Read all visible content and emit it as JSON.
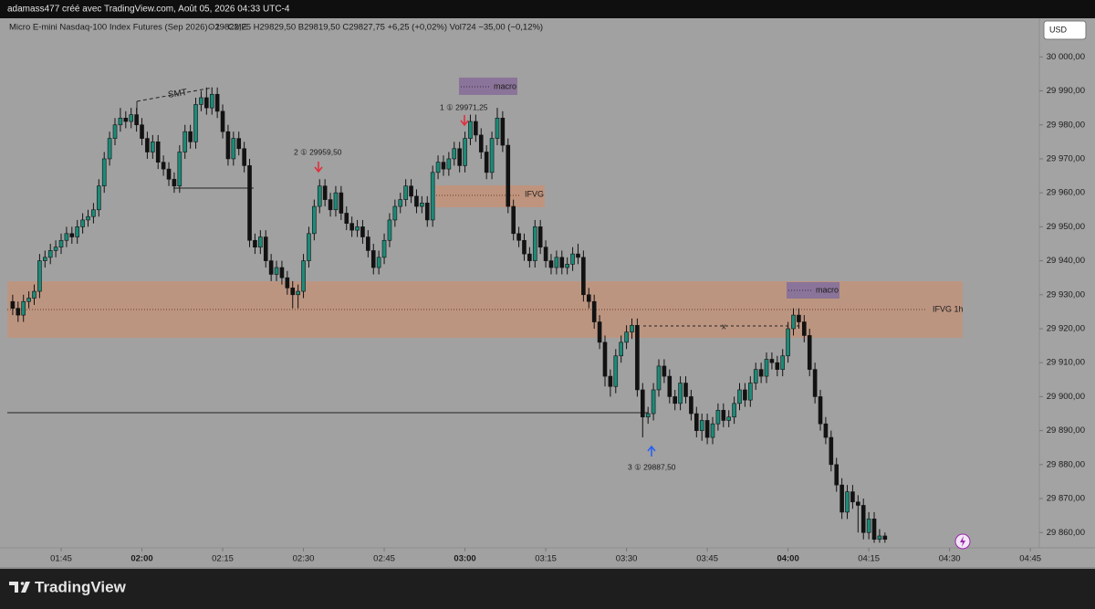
{
  "header": {
    "credit": "adamass477 créé avec TradingView.com, Août 05, 2026 04:33 UTC-4",
    "brand": "TradingView"
  },
  "chart_data": {
    "type": "candlestick",
    "title": "Micro E-mini Nasdaq-100 Index Futures (Sep 2026) · 1 · CME",
    "legend_line": "O29822,25 H29829,50 B29819,50 C29827,75 +6,25 (+0,02%) Vol724 −35,00 (−0,12%)",
    "currency": "USD",
    "up_color": "#1d8a78",
    "down_color": "#121212",
    "xlim": [
      95,
      286.5
    ],
    "xticks": [
      {
        "value": 105,
        "label": "01:45"
      },
      {
        "value": 120,
        "label": "02:00"
      },
      {
        "value": 135,
        "label": "02:15"
      },
      {
        "value": 150,
        "label": "02:30"
      },
      {
        "value": 165,
        "label": "02:45"
      },
      {
        "value": 180,
        "label": "03:00"
      },
      {
        "value": 195,
        "label": "03:15"
      },
      {
        "value": 210,
        "label": "03:30"
      },
      {
        "value": 225,
        "label": "03:45"
      },
      {
        "value": 240,
        "label": "04:00"
      },
      {
        "value": 255,
        "label": "04:15"
      },
      {
        "value": 270,
        "label": "04:30"
      },
      {
        "value": 285,
        "label": "04:45"
      }
    ],
    "ylim": [
      29855.5,
      30006
    ],
    "yticks": [
      {
        "value": 29860,
        "label": "29 860,00"
      },
      {
        "value": 29870,
        "label": "29 870,00"
      },
      {
        "value": 29880,
        "label": "29 880,00"
      },
      {
        "value": 29890,
        "label": "29 890,00"
      },
      {
        "value": 29900,
        "label": "29 900,00"
      },
      {
        "value": 29910,
        "label": "29 910,00"
      },
      {
        "value": 29920,
        "label": "29 920,00"
      },
      {
        "value": 29930,
        "label": "29 930,00"
      },
      {
        "value": 29940,
        "label": "29 940,00"
      },
      {
        "value": 29950,
        "label": "29 950,00"
      },
      {
        "value": 29960,
        "label": "29 960,00"
      },
      {
        "value": 29970,
        "label": "29 970,00"
      },
      {
        "value": 29980,
        "label": "29 980,00"
      },
      {
        "value": 29990,
        "label": "29 990,00"
      },
      {
        "value": 30000,
        "label": "30 000,00"
      }
    ],
    "grid": false,
    "x": [
      96,
      97,
      98,
      99,
      100,
      101,
      102,
      103,
      104,
      105,
      106,
      107,
      108,
      109,
      110,
      111,
      112,
      113,
      114,
      115,
      116,
      117,
      118,
      119,
      120,
      121,
      122,
      123,
      124,
      125,
      126,
      127,
      128,
      129,
      130,
      131,
      132,
      133,
      134,
      135,
      136,
      137,
      138,
      139,
      140,
      141,
      142,
      143,
      144,
      145,
      146,
      147,
      148,
      149,
      150,
      151,
      152,
      153,
      154,
      155,
      156,
      157,
      158,
      159,
      160,
      161,
      162,
      163,
      164,
      165,
      166,
      167,
      168,
      169,
      170,
      171,
      172,
      173,
      174,
      175,
      176,
      177,
      178,
      179,
      180,
      181,
      182,
      183,
      184,
      185,
      186,
      187,
      188,
      189,
      190,
      191,
      192,
      193,
      194,
      195,
      196,
      197,
      198,
      199,
      200,
      201,
      202,
      203,
      204,
      205,
      206,
      207,
      208,
      209,
      210,
      211,
      212,
      213,
      214,
      215,
      216,
      217,
      218,
      219,
      220,
      221,
      222,
      223,
      224,
      225,
      226,
      227,
      228,
      229,
      230,
      231,
      232,
      233,
      234,
      235,
      236,
      237,
      238,
      239,
      240,
      241,
      242,
      243,
      244,
      245,
      246,
      247,
      248,
      249,
      250,
      251,
      252,
      253,
      254,
      255,
      256,
      257,
      258
    ],
    "open": [
      29928,
      29926,
      29924,
      29928,
      29929,
      29931,
      29940,
      29941,
      29943,
      29944,
      29946,
      29948,
      29947,
      29950,
      29952,
      29953,
      29955,
      29962,
      29970,
      29976,
      29980,
      29982,
      29981,
      29983,
      29980,
      29976,
      29972,
      29975,
      29969,
      29967,
      29964,
      29962,
      29972,
      29978,
      29975,
      29986,
      29988,
      29985,
      29989,
      29984,
      29978,
      29970,
      29976,
      29973,
      29968,
      29946,
      29944,
      29947,
      29940,
      29936,
      29938,
      29935,
      29932,
      29930,
      29931,
      29940,
      29948,
      29956,
      29962,
      29958,
      29955,
      29960,
      29954,
      29951,
      29949,
      29950,
      29947,
      29943,
      29938,
      29941,
      29946,
      29952,
      29956,
      29958,
      29962,
      29959,
      29956,
      29957,
      29952,
      29966,
      29969,
      29967,
      29970,
      29973,
      29968,
      29976,
      29981,
      29977,
      29972,
      29966,
      29976,
      29982,
      29974,
      29956,
      29948,
      29946,
      29942,
      29940,
      29950,
      29944,
      29940,
      29938,
      29941,
      29938,
      29939,
      29942,
      29941,
      29930,
      29928,
      29922,
      29916,
      29906,
      29903,
      29912,
      29916,
      29919,
      29921,
      29902,
      29894,
      29895,
      29902,
      29909,
      29906,
      29900,
      29898,
      29904,
      29900,
      29895,
      29890,
      29893,
      29888,
      29892,
      29896,
      29893,
      29894,
      29898,
      29902,
      29899,
      29904,
      29908,
      29906,
      29911,
      29910,
      29908,
      29912,
      29920,
      29924,
      29922,
      29918,
      29908,
      29900,
      29892,
      29888,
      29880,
      29874,
      29866,
      29872,
      29869,
      29868,
      29860,
      29864,
      29858,
      29859
    ],
    "high": [
      29930,
      29928,
      29930,
      29931,
      29933,
      29942,
      29943,
      29945,
      29946,
      29948,
      29950,
      29950,
      29952,
      29954,
      29955,
      29957,
      29964,
      29972,
      29978,
      29982,
      29985,
      29984,
      29985,
      29985,
      29982,
      29978,
      29977,
      29977,
      29971,
      29969,
      29966,
      29974,
      29980,
      29980,
      29988,
      29990,
      29991,
      29991,
      29991,
      29986,
      29980,
      29978,
      29978,
      29975,
      29970,
      29948,
      29949,
      29949,
      29942,
      29940,
      29940,
      29937,
      29934,
      29933,
      29942,
      29950,
      29958,
      29964,
      29964,
      29960,
      29962,
      29962,
      29956,
      29953,
      29952,
      29952,
      29949,
      29945,
      29943,
      29948,
      29954,
      29958,
      29960,
      29964,
      29964,
      29961,
      29959,
      29959,
      29968,
      29971,
      29971,
      29972,
      29975,
      29975,
      29978,
      29983,
      29983,
      29979,
      29974,
      29978,
      29985,
      29984,
      29976,
      29958,
      29950,
      29948,
      29944,
      29952,
      29952,
      29946,
      29942,
      29943,
      29943,
      29941,
      29944,
      29945,
      29943,
      29932,
      29930,
      29924,
      29918,
      29908,
      29914,
      29918,
      29921,
      29923,
      29923,
      29904,
      29897,
      29904,
      29911,
      29911,
      29908,
      29902,
      29906,
      29906,
      29902,
      29897,
      29895,
      29895,
      29894,
      29898,
      29898,
      29896,
      29900,
      29904,
      29904,
      29906,
      29910,
      29910,
      29913,
      29913,
      29912,
      29914,
      29922,
      29926,
      29926,
      29924,
      29920,
      29910,
      29902,
      29894,
      29890,
      29882,
      29876,
      29874,
      29874,
      29871,
      29870,
      29866,
      29866,
      29861,
      29860
    ],
    "low": [
      29924,
      29922,
      29922,
      29926,
      29927,
      29929,
      29938,
      29939,
      29941,
      29942,
      29944,
      29945,
      29945,
      29948,
      29950,
      29951,
      29953,
      29960,
      29968,
      29974,
      29978,
      29979,
      29979,
      29978,
      29974,
      29970,
      29970,
      29967,
      29965,
      29962,
      29960,
      29960,
      29970,
      29973,
      29973,
      29984,
      29983,
      29983,
      29982,
      29976,
      29968,
      29968,
      29971,
      29966,
      29944,
      29942,
      29942,
      29938,
      29934,
      29934,
      29933,
      29930,
      29926,
      29926,
      29929,
      29938,
      29946,
      29954,
      29956,
      29953,
      29953,
      29952,
      29949,
      29947,
      29947,
      29945,
      29941,
      29936,
      29936,
      29939,
      29944,
      29950,
      29954,
      29956,
      29957,
      29954,
      29954,
      29950,
      29950,
      29964,
      29965,
      29965,
      29968,
      29966,
      29966,
      29974,
      29975,
      29970,
      29964,
      29964,
      29974,
      29972,
      29954,
      29946,
      29944,
      29940,
      29938,
      29938,
      29942,
      29938,
      29936,
      29936,
      29936,
      29936,
      29937,
      29939,
      29928,
      29926,
      29920,
      29914,
      29903,
      29900,
      29901,
      29910,
      29914,
      29917,
      29900,
      29888,
      29892,
      29893,
      29900,
      29904,
      29898,
      29896,
      29896,
      29898,
      29893,
      29888,
      29887,
      29886,
      29886,
      29890,
      29891,
      29891,
      29892,
      29896,
      29897,
      29897,
      29902,
      29904,
      29904,
      29908,
      29906,
      29906,
      29910,
      29918,
      29920,
      29916,
      29906,
      29898,
      29890,
      29886,
      29878,
      29872,
      29864,
      29864,
      29867,
      29860,
      29858,
      29858,
      29857,
      29857,
      29857
    ],
    "close": [
      29926,
      29924,
      29928,
      29929,
      29931,
      29940,
      29941,
      29943,
      29944,
      29946,
      29948,
      29947,
      29950,
      29952,
      29953,
      29955,
      29962,
      29970,
      29976,
      29980,
      29982,
      29981,
      29983,
      29980,
      29976,
      29972,
      29975,
      29969,
      29967,
      29964,
      29962,
      29972,
      29978,
      29975,
      29986,
      29988,
      29985,
      29989,
      29984,
      29978,
      29970,
      29976,
      29973,
      29968,
      29946,
      29944,
      29947,
      29940,
      29936,
      29938,
      29935,
      29932,
      29930,
      29931,
      29940,
      29948,
      29956,
      29962,
      29958,
      29955,
      29960,
      29954,
      29951,
      29949,
      29950,
      29947,
      29943,
      29938,
      29941,
      29946,
      29952,
      29956,
      29958,
      29962,
      29959,
      29956,
      29957,
      29952,
      29966,
      29969,
      29967,
      29970,
      29973,
      29968,
      29976,
      29981,
      29977,
      29972,
      29966,
      29976,
      29982,
      29974,
      29956,
      29948,
      29946,
      29942,
      29940,
      29950,
      29944,
      29940,
      29938,
      29941,
      29938,
      29939,
      29942,
      29941,
      29930,
      29928,
      29922,
      29916,
      29906,
      29903,
      29912,
      29916,
      29919,
      29921,
      29902,
      29894,
      29895,
      29902,
      29909,
      29906,
      29900,
      29898,
      29904,
      29900,
      29895,
      29890,
      29893,
      29888,
      29892,
      29896,
      29893,
      29894,
      29898,
      29902,
      29899,
      29904,
      29908,
      29906,
      29911,
      29910,
      29908,
      29912,
      29920,
      29924,
      29922,
      29918,
      29908,
      29900,
      29892,
      29888,
      29880,
      29874,
      29866,
      29872,
      29869,
      29868,
      29860,
      29864,
      29858,
      29859,
      29858
    ],
    "annotations": {
      "smt": "SMT",
      "macro_1": "macro",
      "macro_2": "macro",
      "ifvg": "IFVG",
      "ifvg_1h": "IFVG 1h",
      "mark_x": "x",
      "signal_1": "1 ① 29971,25",
      "signal_2": "2 ① 29959,50",
      "signal_3": "3 ① 29887,50"
    }
  }
}
